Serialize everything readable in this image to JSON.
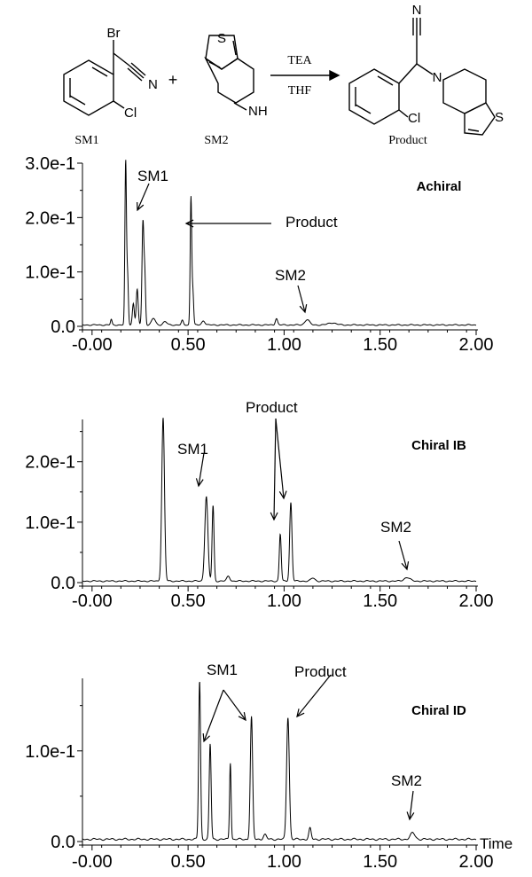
{
  "scheme": {
    "reagent_top": "TEA",
    "reagent_bottom": "THF",
    "plus": "+",
    "sm1_label": "SM1",
    "sm2_label": "SM2",
    "product_label": "Product",
    "atoms": {
      "br": "Br",
      "n": "N",
      "cl": "Cl",
      "s": "S",
      "nh": "NH"
    }
  },
  "chart_data": [
    {
      "type": "line",
      "title": "Achiral",
      "xlabel": "",
      "ylabel": "",
      "xlim": [
        -0.05,
        2.0
      ],
      "ylim": [
        0,
        0.3
      ],
      "xticks": [
        "-0.00",
        "0.50",
        "1.00",
        "1.50",
        "2.00"
      ],
      "yticks": [
        "0.0",
        "1.0e-1",
        "2.0e-1",
        "3.0e-1"
      ],
      "peaks": [
        {
          "x": 0.1,
          "h": 0.01,
          "w": 0.004
        },
        {
          "x": 0.175,
          "h": 0.3,
          "w": 0.004
        },
        {
          "x": 0.185,
          "h": 0.09,
          "w": 0.004
        },
        {
          "x": 0.215,
          "h": 0.04,
          "w": 0.005
        },
        {
          "x": 0.235,
          "h": 0.065,
          "w": 0.005
        },
        {
          "x": 0.265,
          "h": 0.19,
          "w": 0.005
        },
        {
          "x": 0.275,
          "h": 0.08,
          "w": 0.004
        },
        {
          "x": 0.32,
          "h": 0.012,
          "w": 0.01
        },
        {
          "x": 0.38,
          "h": 0.006,
          "w": 0.01
        },
        {
          "x": 0.47,
          "h": 0.008,
          "w": 0.005
        },
        {
          "x": 0.515,
          "h": 0.235,
          "w": 0.004
        },
        {
          "x": 0.525,
          "h": 0.06,
          "w": 0.004
        },
        {
          "x": 0.58,
          "h": 0.008,
          "w": 0.008
        },
        {
          "x": 0.96,
          "h": 0.012,
          "w": 0.006
        },
        {
          "x": 1.12,
          "h": 0.01,
          "w": 0.012
        },
        {
          "x": 1.25,
          "h": 0.004,
          "w": 0.02
        }
      ],
      "annotations": [
        {
          "text": "SM1",
          "x": 0.35,
          "y": 0.275
        },
        {
          "text": "Product",
          "x": 1.1,
          "y": 0.19
        },
        {
          "text": "SM2",
          "x": 1.09,
          "y": 0.095
        }
      ]
    },
    {
      "type": "line",
      "title": "Chiral IB",
      "xlabel": "",
      "ylabel": "",
      "xlim": [
        -0.05,
        2.0
      ],
      "ylim": [
        0,
        0.27
      ],
      "xticks": [
        "-0.00",
        "0.50",
        "1.00",
        "1.50",
        "2.00"
      ],
      "yticks": [
        "0.0",
        "1.0e-1",
        "2.0e-1"
      ],
      "peaks": [
        {
          "x": -0.18,
          "h": 0.01,
          "w": 0.004
        },
        {
          "x": 0.37,
          "h": 0.27,
          "w": 0.007
        },
        {
          "x": 0.595,
          "h": 0.14,
          "w": 0.008
        },
        {
          "x": 0.63,
          "h": 0.125,
          "w": 0.005
        },
        {
          "x": 0.71,
          "h": 0.008,
          "w": 0.008
        },
        {
          "x": 0.98,
          "h": 0.078,
          "w": 0.005
        },
        {
          "x": 1.035,
          "h": 0.13,
          "w": 0.006
        },
        {
          "x": 1.15,
          "h": 0.005,
          "w": 0.01
        },
        {
          "x": 1.64,
          "h": 0.006,
          "w": 0.015
        }
      ],
      "annotations": [
        {
          "text": "SM1",
          "x": 0.54,
          "y": 0.215
        },
        {
          "text": "Product",
          "x": 1.0,
          "y": 0.29
        },
        {
          "text": "SM2",
          "x": 1.62,
          "y": 0.095
        }
      ]
    },
    {
      "type": "line",
      "title": "Chiral ID",
      "xlabel": "Time",
      "ylabel": "",
      "xlim": [
        -0.05,
        2.0
      ],
      "ylim": [
        0,
        0.18
      ],
      "xticks": [
        "-0.00",
        "0.50",
        "1.00",
        "1.50",
        "2.00"
      ],
      "yticks": [
        "0.0",
        "1.0e-1"
      ],
      "peaks": [
        {
          "x": -0.18,
          "h": 0.004,
          "w": 0.004
        },
        {
          "x": 0.56,
          "h": 0.175,
          "w": 0.005
        },
        {
          "x": 0.615,
          "h": 0.105,
          "w": 0.005
        },
        {
          "x": 0.72,
          "h": 0.085,
          "w": 0.004
        },
        {
          "x": 0.83,
          "h": 0.135,
          "w": 0.006
        },
        {
          "x": 0.9,
          "h": 0.005,
          "w": 0.008
        },
        {
          "x": 1.02,
          "h": 0.135,
          "w": 0.007
        },
        {
          "x": 1.135,
          "h": 0.012,
          "w": 0.006
        },
        {
          "x": 1.67,
          "h": 0.007,
          "w": 0.012
        }
      ],
      "annotations": [
        {
          "text": "SM1",
          "x": 0.7,
          "y": 0.195
        },
        {
          "text": "Product",
          "x": 1.25,
          "y": 0.19
        },
        {
          "text": "SM2",
          "x": 1.66,
          "y": 0.07
        }
      ]
    }
  ]
}
